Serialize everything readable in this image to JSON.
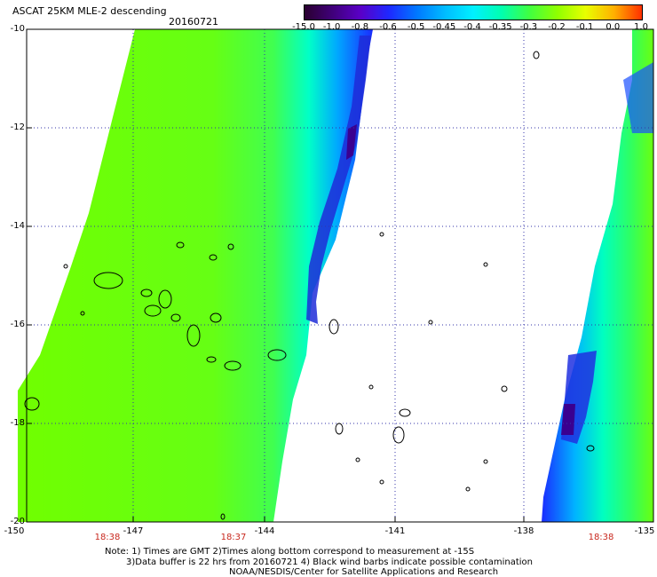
{
  "title": "ASCAT 25KM MLE-2 descending",
  "date": "20160721",
  "colorbar": {
    "labels": [
      "-15.0",
      "-1.0",
      "-0.8",
      "-0.6",
      "-0.5",
      "-0.45",
      "-0.4",
      "-0.35",
      "-0.3",
      "-0.2",
      "-0.1",
      "0.0",
      "1.0"
    ],
    "colors": [
      "#2a0030",
      "#40007a",
      "#5a00c8",
      "#1e28ff",
      "#0078ff",
      "#00bcff",
      "#00f0ff",
      "#00ffb0",
      "#40ff40",
      "#90ff00",
      "#e8ff00",
      "#ffb000",
      "#ff3000"
    ]
  },
  "axes": {
    "lat_labels": [
      "-10",
      "-12",
      "-14",
      "-16",
      "-18",
      "-20"
    ],
    "lon_labels": [
      "-150",
      "-147",
      "-144",
      "-141",
      "-138",
      "-135"
    ]
  },
  "time_labels": [
    "18:38",
    "18:37",
    "18:38"
  ],
  "notes": [
    "Note: 1) Times are GMT 2)Times along bottom correspond to measurement at -15S",
    "3)Data buffer is 22 hrs from 20160721 4) Black wind barbs indicate possible contamination",
    "NOAA/NESDIS/Center for Satellite Applications and Research"
  ]
}
